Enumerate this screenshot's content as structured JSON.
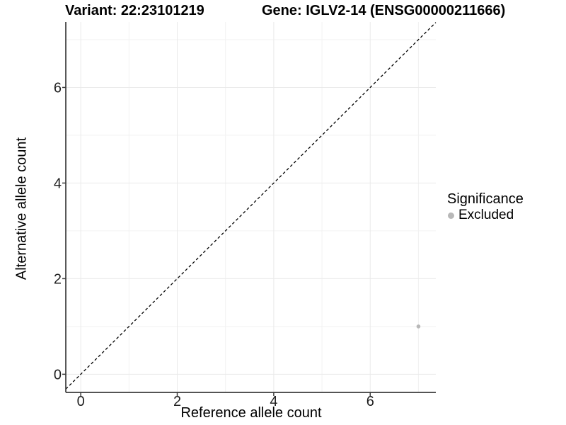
{
  "chart_data": {
    "type": "scatter",
    "title_left": "Variant: 22:23101219",
    "title_right": "Gene: IGLV2-14 (ENSG00000211666)",
    "xlabel": "Reference allele count",
    "ylabel": "Alternative allele count",
    "xlim": [
      -0.31,
      7.36
    ],
    "ylim": [
      -0.38,
      7.37
    ],
    "x_major_ticks": [
      0,
      2,
      4,
      6
    ],
    "y_major_ticks": [
      0,
      2,
      4,
      6
    ],
    "x_minor_ticks": [
      1,
      3,
      5,
      7
    ],
    "y_minor_ticks": [
      1,
      3,
      5,
      7
    ],
    "grid": true,
    "identity_line": {
      "type": "abline",
      "slope": 1,
      "intercept": 0,
      "style": "dashed",
      "color": "#000000"
    },
    "series": [
      {
        "name": "Excluded",
        "color": "#b8b8b8",
        "points": [
          {
            "x": 7,
            "y": 1
          }
        ]
      }
    ],
    "legend": {
      "title": "Significance",
      "position": "right",
      "entries": [
        {
          "label": "Excluded",
          "color": "#b8b8b8"
        }
      ]
    },
    "colors": {
      "grid_major": "#eaeaea",
      "grid_minor": "#f2f2f2",
      "axis_line": "#3c3c3c",
      "tick_text": "#1f1f1f",
      "background": "#ffffff"
    }
  }
}
